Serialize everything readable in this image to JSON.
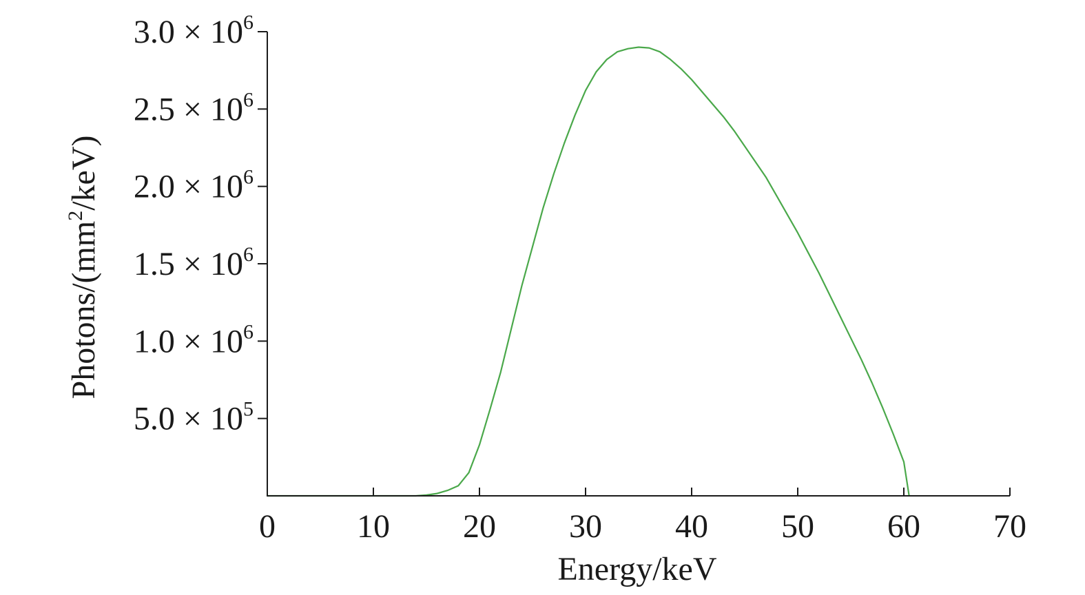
{
  "chart_data": {
    "type": "line",
    "title": "",
    "xlabel": "Energy/keV",
    "ylabel": {
      "prefix": "Photons/(mm",
      "superscript": "2",
      "suffix": "/keV)"
    },
    "xlim": [
      0,
      70
    ],
    "ylim": [
      0,
      3000000
    ],
    "grid": false,
    "x_ticks": [
      {
        "value": 0,
        "label": "0"
      },
      {
        "value": 10,
        "label": "10"
      },
      {
        "value": 20,
        "label": "20"
      },
      {
        "value": 30,
        "label": "30"
      },
      {
        "value": 40,
        "label": "40"
      },
      {
        "value": 50,
        "label": "50"
      },
      {
        "value": 60,
        "label": "60"
      },
      {
        "value": 70,
        "label": "70"
      }
    ],
    "y_ticks": [
      {
        "value": 500000,
        "mantissa": "5.0 × 10",
        "exponent": "5"
      },
      {
        "value": 1000000,
        "mantissa": "1.0 × 10",
        "exponent": "6"
      },
      {
        "value": 1500000,
        "mantissa": "1.5 × 10",
        "exponent": "6"
      },
      {
        "value": 2000000,
        "mantissa": "2.0 × 10",
        "exponent": "6"
      },
      {
        "value": 2500000,
        "mantissa": "2.5 × 10",
        "exponent": "6"
      },
      {
        "value": 3000000,
        "mantissa": "3.0 × 10",
        "exponent": "6"
      }
    ],
    "series": [
      {
        "color": "#4aa84a",
        "x": [
          0,
          5,
          10,
          14,
          15,
          16,
          17,
          18,
          19,
          20,
          21,
          22,
          23,
          24,
          25,
          26,
          27,
          28,
          29,
          30,
          31,
          32,
          33,
          34,
          35,
          36,
          37,
          38,
          39,
          40,
          41,
          42,
          43,
          44,
          45,
          46,
          47,
          48,
          49,
          50,
          51,
          52,
          53,
          54,
          55,
          56,
          57,
          58,
          59,
          60,
          60.5
        ],
        "y": [
          0,
          0,
          0,
          0,
          5000,
          15000,
          35000,
          65000,
          150000,
          330000,
          560000,
          800000,
          1080000,
          1360000,
          1610000,
          1860000,
          2080000,
          2280000,
          2460000,
          2620000,
          2740000,
          2820000,
          2870000,
          2890000,
          2900000,
          2895000,
          2870000,
          2820000,
          2760000,
          2690000,
          2610000,
          2530000,
          2450000,
          2360000,
          2260000,
          2160000,
          2060000,
          1940000,
          1820000,
          1700000,
          1570000,
          1440000,
          1300000,
          1160000,
          1020000,
          880000,
          730000,
          570000,
          400000,
          220000,
          0
        ]
      }
    ]
  }
}
